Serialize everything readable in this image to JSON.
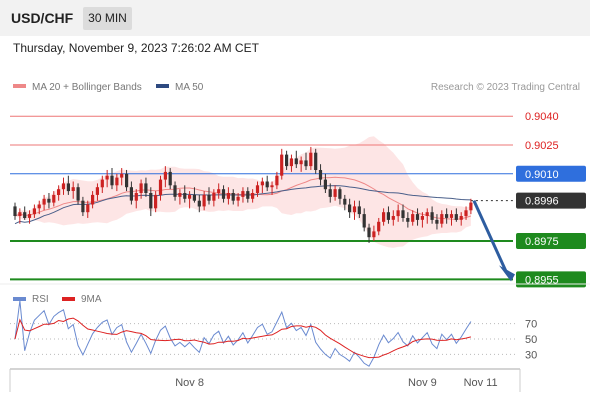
{
  "header": {
    "symbol": "USD/CHF",
    "timeframe": "30 MIN",
    "datetime": "Thursday, November 9, 2023 7:26:02 AM CET"
  },
  "legend": {
    "ma20": "MA 20 + Bollinger Bands",
    "ma50": "MA 50",
    "credit": "Research © 2023 Trading Central"
  },
  "colors": {
    "bullish": "#cc2222",
    "bearish": "#333333",
    "ma20": "#ee8888",
    "bollinger": "#fde0e0",
    "ma50": "#4a5f8a",
    "resistance": "#ee7777",
    "pivot": "#2f6fdd",
    "support": "#1e8a1e",
    "current": "#333333",
    "arrow": "#2e5da0",
    "rsi": "#6a8ad0",
    "rsi_ma": "#dd2222"
  },
  "chart_data": [
    {
      "type": "candlestick",
      "levels": [
        {
          "name": "resistance",
          "label": "0.9040",
          "value": 0.904
        },
        {
          "name": "resistance",
          "label": "0.9025",
          "value": 0.9025
        },
        {
          "name": "pivot",
          "label": "0.9010",
          "value": 0.901
        },
        {
          "name": "current",
          "label": "0.8996",
          "value": 0.8996
        },
        {
          "name": "support",
          "label": "0.8975",
          "value": 0.8975
        },
        {
          "name": "support",
          "label": "0.8955",
          "value": 0.8955
        }
      ],
      "ylim": [
        0.895,
        0.905
      ],
      "arrow": {
        "from": 0.8996,
        "to": 0.8955
      },
      "candles": [
        [
          0.8993,
          0.8995,
          0.8986,
          0.8988
        ],
        [
          0.8988,
          0.8992,
          0.8984,
          0.899
        ],
        [
          0.899,
          0.8993,
          0.8986,
          0.8987
        ],
        [
          0.8987,
          0.8991,
          0.8984,
          0.8989
        ],
        [
          0.8989,
          0.8994,
          0.8987,
          0.8992
        ],
        [
          0.8992,
          0.8996,
          0.8989,
          0.8994
        ],
        [
          0.8994,
          0.8999,
          0.8991,
          0.8997
        ],
        [
          0.8997,
          0.9,
          0.8992,
          0.8995
        ],
        [
          0.8995,
          0.9001,
          0.8993,
          0.8999
        ],
        [
          0.8999,
          0.9004,
          0.8996,
          0.9002
        ],
        [
          0.9002,
          0.9008,
          0.8999,
          0.9005
        ],
        [
          0.9005,
          0.9009,
          0.8999,
          0.9001
        ],
        [
          0.9001,
          0.9006,
          0.8997,
          0.9003
        ],
        [
          0.9003,
          0.9005,
          0.8994,
          0.8996
        ],
        [
          0.8996,
          0.8998,
          0.8988,
          0.899
        ],
        [
          0.899,
          0.8996,
          0.8987,
          0.8994
        ],
        [
          0.8994,
          0.9001,
          0.8992,
          0.8999
        ],
        [
          0.8999,
          0.9005,
          0.8996,
          0.9003
        ],
        [
          0.9003,
          0.9009,
          0.9,
          0.9007
        ],
        [
          0.9007,
          0.9012,
          0.9003,
          0.9009
        ],
        [
          0.9009,
          0.9013,
          0.9002,
          0.9004
        ],
        [
          0.9004,
          0.901,
          0.9001,
          0.9008
        ],
        [
          0.9008,
          0.9013,
          0.9004,
          0.901
        ],
        [
          0.901,
          0.9012,
          0.9001,
          0.9003
        ],
        [
          0.9003,
          0.9006,
          0.8994,
          0.8996
        ],
        [
          0.8996,
          0.9002,
          0.8992,
          0.9
        ],
        [
          0.9,
          0.9007,
          0.8997,
          0.9005
        ],
        [
          0.9005,
          0.9008,
          0.8998,
          0.9
        ],
        [
          0.9,
          0.9003,
          0.8988,
          0.8992
        ],
        [
          0.8992,
          0.9001,
          0.899,
          0.8999
        ],
        [
          0.8999,
          0.9009,
          0.8996,
          0.9007
        ],
        [
          0.9007,
          0.9014,
          0.9003,
          0.9011
        ],
        [
          0.9011,
          0.9013,
          0.9002,
          0.9004
        ],
        [
          0.9004,
          0.9006,
          0.8996,
          0.8998
        ],
        [
          0.8998,
          0.9002,
          0.8994,
          0.9
        ],
        [
          0.9,
          0.9004,
          0.8995,
          0.8997
        ],
        [
          0.8997,
          0.9001,
          0.8992,
          0.8999
        ],
        [
          0.8999,
          0.9003,
          0.8995,
          0.8996
        ],
        [
          0.8996,
          0.8999,
          0.899,
          0.8993
        ],
        [
          0.8993,
          0.9001,
          0.8991,
          0.8999
        ],
        [
          0.8999,
          0.9003,
          0.8994,
          0.8996
        ],
        [
          0.8996,
          0.9002,
          0.8993,
          0.9
        ],
        [
          0.9,
          0.9005,
          0.8997,
          0.9002
        ],
        [
          0.9002,
          0.9004,
          0.8995,
          0.8997
        ],
        [
          0.8997,
          0.9003,
          0.8994,
          0.9
        ],
        [
          0.9,
          0.9002,
          0.8994,
          0.8996
        ],
        [
          0.8996,
          0.9,
          0.8993,
          0.8998
        ],
        [
          0.8998,
          0.9003,
          0.8995,
          0.9001
        ],
        [
          0.9001,
          0.9003,
          0.8995,
          0.8997
        ],
        [
          0.8997,
          0.9002,
          0.8995,
          0.9
        ],
        [
          0.9,
          0.9006,
          0.8998,
          0.9004
        ],
        [
          0.9004,
          0.9008,
          0.9,
          0.9006
        ],
        [
          0.9006,
          0.9009,
          0.9001,
          0.9003
        ],
        [
          0.9003,
          0.9006,
          0.8999,
          0.9004
        ],
        [
          0.9004,
          0.9011,
          0.9002,
          0.9009
        ],
        [
          0.9009,
          0.9023,
          0.9007,
          0.902
        ],
        [
          0.902,
          0.9022,
          0.9012,
          0.9014
        ],
        [
          0.9014,
          0.902,
          0.9011,
          0.9018
        ],
        [
          0.9018,
          0.9022,
          0.9013,
          0.9015
        ],
        [
          0.9015,
          0.9019,
          0.9011,
          0.9017
        ],
        [
          0.9017,
          0.9021,
          0.9012,
          0.9014
        ],
        [
          0.9014,
          0.9024,
          0.9012,
          0.9021
        ],
        [
          0.9021,
          0.9023,
          0.901,
          0.9012
        ],
        [
          0.9012,
          0.9015,
          0.9004,
          0.9007
        ],
        [
          0.9007,
          0.901,
          0.9,
          0.9002
        ],
        [
          0.9002,
          0.9005,
          0.8995,
          0.8998
        ],
        [
          0.8998,
          0.9004,
          0.8996,
          0.9002
        ],
        [
          0.9002,
          0.9003,
          0.8994,
          0.8997
        ],
        [
          0.8997,
          0.8999,
          0.8991,
          0.8994
        ],
        [
          0.8994,
          0.8997,
          0.8987,
          0.899
        ],
        [
          0.899,
          0.8996,
          0.8986,
          0.8993
        ],
        [
          0.8993,
          0.8996,
          0.8987,
          0.8989
        ],
        [
          0.8989,
          0.8992,
          0.898,
          0.8982
        ],
        [
          0.8982,
          0.8984,
          0.8974,
          0.8977
        ],
        [
          0.8977,
          0.8983,
          0.8975,
          0.898
        ],
        [
          0.898,
          0.8987,
          0.8978,
          0.8985
        ],
        [
          0.8985,
          0.8992,
          0.8983,
          0.899
        ],
        [
          0.899,
          0.8993,
          0.8984,
          0.8986
        ],
        [
          0.8986,
          0.8991,
          0.8983,
          0.8988
        ],
        [
          0.8988,
          0.8994,
          0.8985,
          0.8991
        ],
        [
          0.8991,
          0.8994,
          0.8985,
          0.8987
        ],
        [
          0.8987,
          0.899,
          0.8982,
          0.8985
        ],
        [
          0.8985,
          0.8991,
          0.8983,
          0.8989
        ],
        [
          0.8989,
          0.8992,
          0.8983,
          0.8986
        ],
        [
          0.8986,
          0.899,
          0.8982,
          0.8988
        ],
        [
          0.8988,
          0.8992,
          0.8984,
          0.899
        ],
        [
          0.899,
          0.8993,
          0.8984,
          0.8986
        ],
        [
          0.8986,
          0.8989,
          0.8981,
          0.8984
        ],
        [
          0.8984,
          0.8991,
          0.8982,
          0.8989
        ],
        [
          0.8989,
          0.8992,
          0.8984,
          0.8987
        ],
        [
          0.8987,
          0.8991,
          0.8983,
          0.8989
        ],
        [
          0.8989,
          0.8992,
          0.8985,
          0.8986
        ],
        [
          0.8986,
          0.899,
          0.8983,
          0.8988
        ],
        [
          0.8988,
          0.8993,
          0.8986,
          0.8991
        ],
        [
          0.8991,
          0.8997,
          0.8989,
          0.8995
        ]
      ]
    },
    {
      "type": "line",
      "legend": [
        "RSI",
        "9MA"
      ],
      "ylim": [
        20,
        80
      ],
      "ticks": [
        "70",
        "50",
        "30"
      ],
      "tick_values": [
        70,
        50,
        30
      ],
      "x_labels": [
        "Nov 8",
        "Nov 9",
        "Nov 11"
      ],
      "x_label_index": [
        36,
        84,
        96
      ]
    }
  ]
}
